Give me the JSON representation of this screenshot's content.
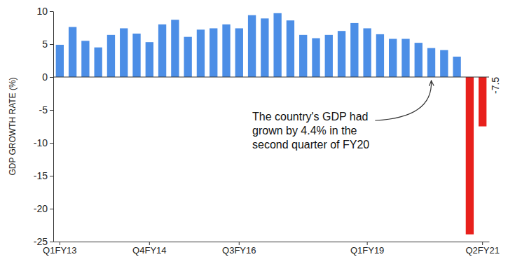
{
  "chart_data": {
    "type": "bar",
    "y_label": "GDP GROWTH RATE (%)",
    "categories": [
      "Q1FY13",
      null,
      null,
      null,
      null,
      null,
      null,
      "Q4FY14",
      null,
      null,
      null,
      null,
      null,
      null,
      "Q3FY16",
      null,
      null,
      null,
      null,
      null,
      null,
      null,
      null,
      null,
      "Q1FY19",
      null,
      null,
      null,
      null,
      null,
      null,
      null,
      null,
      "Q2FY21"
    ],
    "values": [
      4.9,
      7.6,
      5.5,
      4.5,
      6.4,
      7.4,
      6.6,
      5.3,
      8.0,
      8.7,
      6.1,
      7.2,
      7.4,
      8.0,
      7.4,
      9.4,
      8.9,
      9.7,
      8.6,
      6.4,
      5.9,
      6.4,
      7.0,
      8.2,
      7.4,
      6.5,
      5.8,
      5.8,
      5.2,
      4.4,
      4.1,
      3.1,
      -23.9,
      -7.5
    ],
    "colors": [
      "#4c8ee6",
      "#4c8ee6",
      "#4c8ee6",
      "#4c8ee6",
      "#4c8ee6",
      "#4c8ee6",
      "#4c8ee6",
      "#4c8ee6",
      "#4c8ee6",
      "#4c8ee6",
      "#4c8ee6",
      "#4c8ee6",
      "#4c8ee6",
      "#4c8ee6",
      "#4c8ee6",
      "#4c8ee6",
      "#4c8ee6",
      "#4c8ee6",
      "#4c8ee6",
      "#4c8ee6",
      "#4c8ee6",
      "#4c8ee6",
      "#4c8ee6",
      "#4c8ee6",
      "#4c8ee6",
      "#4c8ee6",
      "#4c8ee6",
      "#4c8ee6",
      "#4c8ee6",
      "#4c8ee6",
      "#4c8ee6",
      "#4c8ee6",
      "#e8201c",
      "#e8201c"
    ],
    "value_labels": [
      null,
      null,
      null,
      null,
      null,
      null,
      null,
      null,
      null,
      null,
      null,
      null,
      null,
      null,
      null,
      null,
      null,
      null,
      null,
      null,
      null,
      null,
      null,
      null,
      null,
      null,
      null,
      null,
      null,
      null,
      null,
      null,
      null,
      "-7.5"
    ],
    "ylim": [
      -25,
      10
    ],
    "yticks": [
      10,
      5,
      0,
      -5,
      -10,
      -15,
      -20,
      -25
    ],
    "annotation": {
      "text": "The country's GDP had grown by 4.4% in the second quarter of FY20",
      "value": 4.4
    }
  }
}
